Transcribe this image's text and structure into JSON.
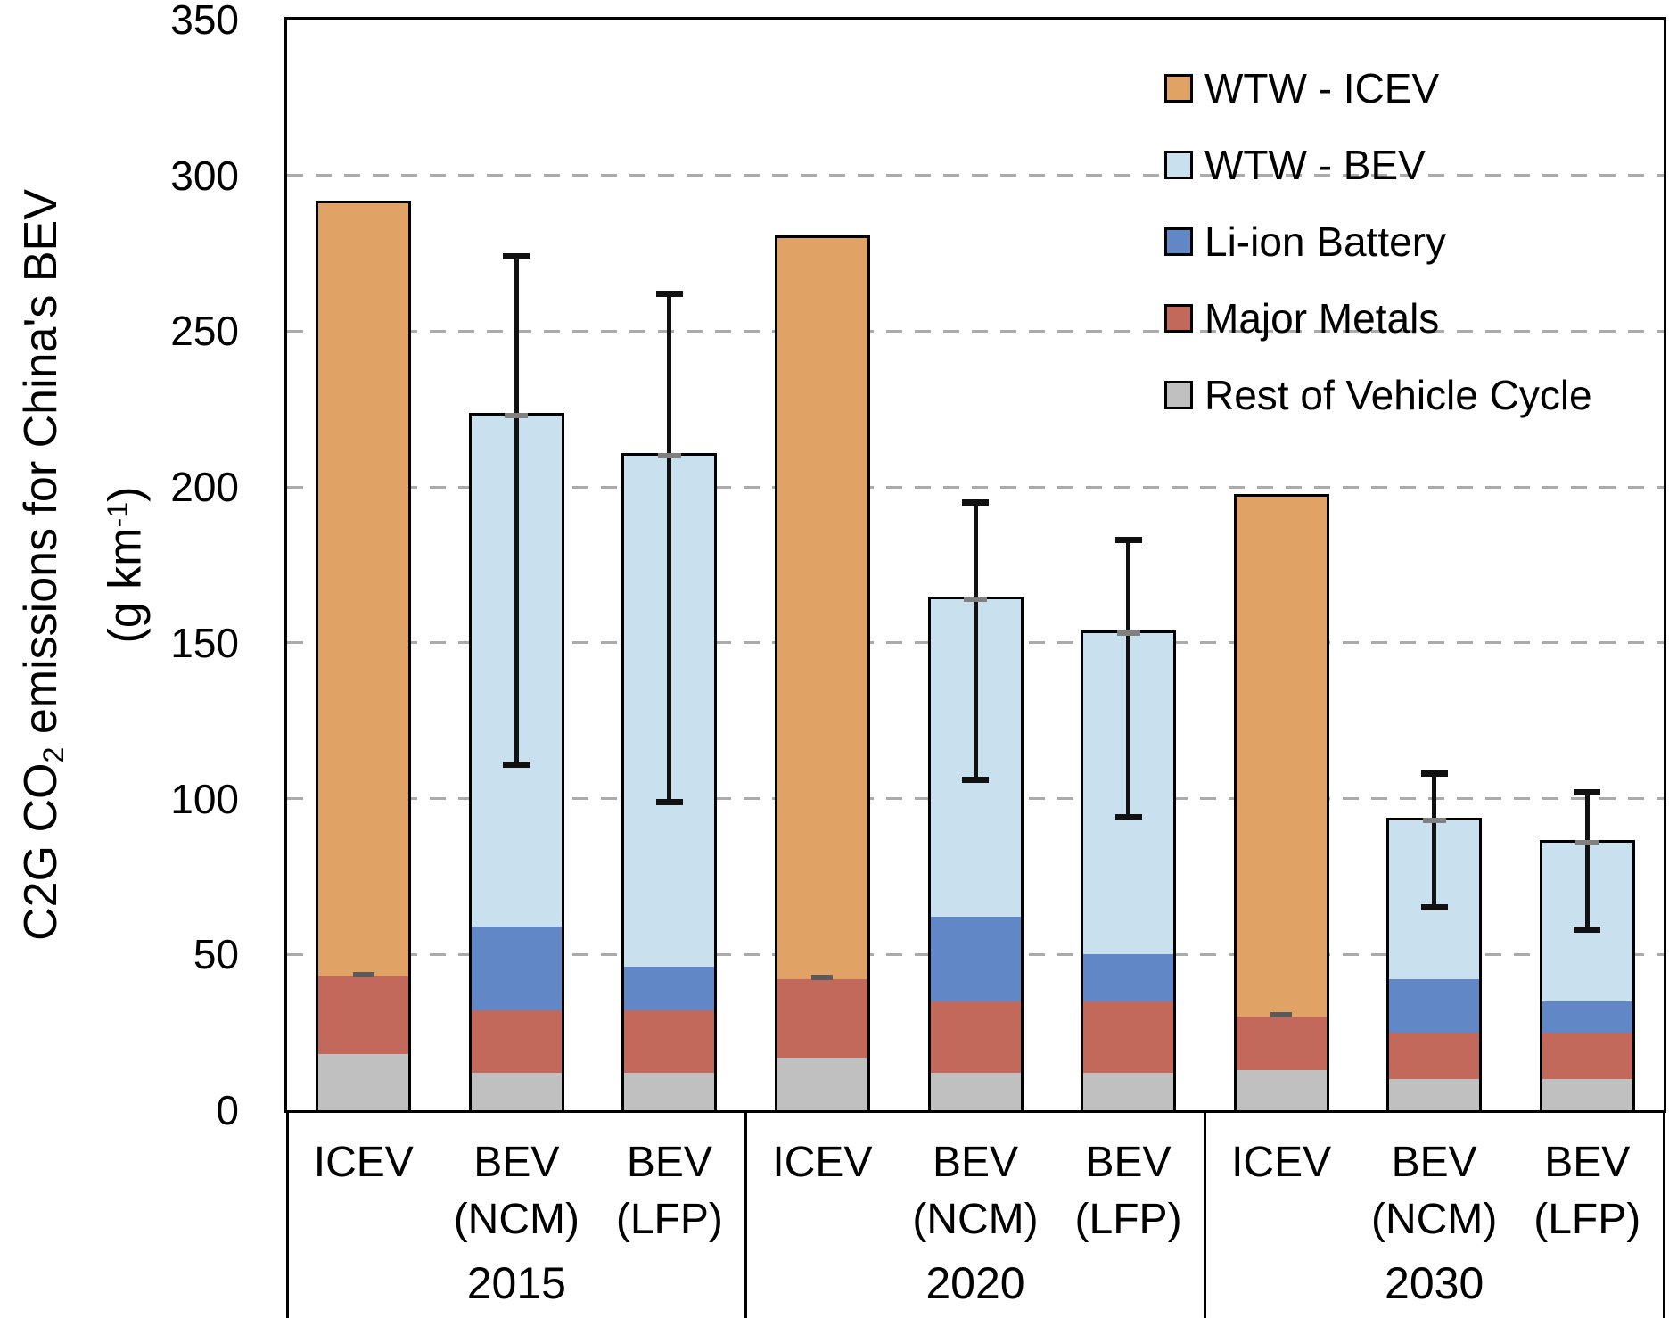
{
  "colors": {
    "wtw_icev": "#E1A266",
    "wtw_bev": "#C9E1EF",
    "li_ion_battery": "#6187C6",
    "major_metals": "#C2695B",
    "rest_of_vehicle_cycle": "#C0C0C0",
    "bar_border": "#000000",
    "gridline": "#ABABAB",
    "error_bar": "#111111",
    "anchor_tick": "#808080"
  },
  "y_axis": {
    "title_plain": "C2G CO2 emissions for China's BEV (g km-1)",
    "title_lines": [
      [
        {
          "t": "C2G CO"
        },
        {
          "t": "2",
          "script": "sub"
        },
        {
          "t": " emissions for China's BEV"
        }
      ],
      [
        {
          "t": "(g km"
        },
        {
          "t": "-1",
          "script": "sup"
        },
        {
          "t": ")"
        }
      ]
    ],
    "ticks": [
      350,
      300,
      250,
      200,
      150,
      100,
      50,
      0
    ]
  },
  "legend": {
    "items": [
      {
        "label": "WTW - ICEV",
        "color_key": "wtw_icev"
      },
      {
        "label": "WTW - BEV",
        "color_key": "wtw_bev"
      },
      {
        "label": "Li-ion Battery",
        "color_key": "li_ion_battery"
      },
      {
        "label": "Major Metals",
        "color_key": "major_metals"
      },
      {
        "label": "Rest of Vehicle Cycle",
        "color_key": "rest_of_vehicle_cycle"
      }
    ]
  },
  "chart_data": {
    "type": "bar",
    "stacked": true,
    "title": "",
    "xlabel": "",
    "ylabel": "C2G CO2 emissions for China's BEV (g km-1)",
    "ylim": [
      0,
      350
    ],
    "yticks": [
      0,
      50,
      100,
      150,
      200,
      250,
      300,
      350
    ],
    "grid": "dashed horizontal at 50-unit intervals",
    "legend_position": "top-right inside plot",
    "segment_keys": [
      "rest_of_vehicle_cycle",
      "major_metals",
      "li_ion_battery",
      "wtw_bev",
      "wtw_icev"
    ],
    "segment_names": [
      "Rest of Vehicle Cycle",
      "Major Metals",
      "Li-ion Battery",
      "WTW - BEV",
      "WTW - ICEV"
    ],
    "groups": [
      {
        "label": "2015",
        "bars": [
          {
            "category_line1": "ICEV",
            "category_line2": "",
            "segments": {
              "rest_of_vehicle_cycle": 18,
              "major_metals": 25,
              "wtw_icev": 248
            },
            "total": 291,
            "vehicle_cycle_tick": 43
          },
          {
            "category_line1": "BEV",
            "category_line2": "(NCM)",
            "segments": {
              "rest_of_vehicle_cycle": 12,
              "major_metals": 20,
              "li_ion_battery": 27,
              "wtw_bev": 164
            },
            "total": 223,
            "error_bar": {
              "low": 111,
              "high": 274
            }
          },
          {
            "category_line1": "BEV",
            "category_line2": "(LFP)",
            "segments": {
              "rest_of_vehicle_cycle": 12,
              "major_metals": 20,
              "li_ion_battery": 14,
              "wtw_bev": 164
            },
            "total": 210,
            "error_bar": {
              "low": 99,
              "high": 262
            }
          }
        ]
      },
      {
        "label": "2020",
        "bars": [
          {
            "category_line1": "ICEV",
            "category_line2": "",
            "segments": {
              "rest_of_vehicle_cycle": 17,
              "major_metals": 25,
              "wtw_icev": 238
            },
            "total": 280,
            "vehicle_cycle_tick": 42
          },
          {
            "category_line1": "BEV",
            "category_line2": "(NCM)",
            "segments": {
              "rest_of_vehicle_cycle": 12,
              "major_metals": 23,
              "li_ion_battery": 27,
              "wtw_bev": 102
            },
            "total": 164,
            "error_bar": {
              "low": 106,
              "high": 195
            }
          },
          {
            "category_line1": "BEV",
            "category_line2": "(LFP)",
            "segments": {
              "rest_of_vehicle_cycle": 12,
              "major_metals": 23,
              "li_ion_battery": 15,
              "wtw_bev": 103
            },
            "total": 153,
            "error_bar": {
              "low": 94,
              "high": 183
            }
          }
        ]
      },
      {
        "label": "2030",
        "bars": [
          {
            "category_line1": "ICEV",
            "category_line2": "",
            "segments": {
              "rest_of_vehicle_cycle": 13,
              "major_metals": 17,
              "wtw_icev": 167
            },
            "total": 197,
            "vehicle_cycle_tick": 30
          },
          {
            "category_line1": "BEV",
            "category_line2": "(NCM)",
            "segments": {
              "rest_of_vehicle_cycle": 10,
              "major_metals": 15,
              "li_ion_battery": 17,
              "wtw_bev": 51
            },
            "total": 93,
            "error_bar": {
              "low": 65,
              "high": 108
            }
          },
          {
            "category_line1": "BEV",
            "category_line2": "(LFP)",
            "segments": {
              "rest_of_vehicle_cycle": 10,
              "major_metals": 15,
              "li_ion_battery": 10,
              "wtw_bev": 51
            },
            "total": 86,
            "error_bar": {
              "low": 58,
              "high": 102
            }
          }
        ]
      }
    ]
  }
}
